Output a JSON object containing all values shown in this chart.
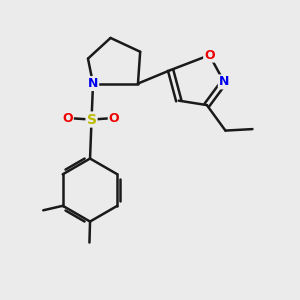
{
  "background_color": "#ebebeb",
  "bond_color": "#1a1a1a",
  "atom_colors": {
    "N": "#0000ee",
    "O": "#ee0000",
    "S": "#bbbb00",
    "C": "#1a1a1a"
  },
  "figsize": [
    3.0,
    3.0
  ],
  "dpi": 100,
  "xlim": [
    0,
    10
  ],
  "ylim": [
    0,
    10
  ]
}
